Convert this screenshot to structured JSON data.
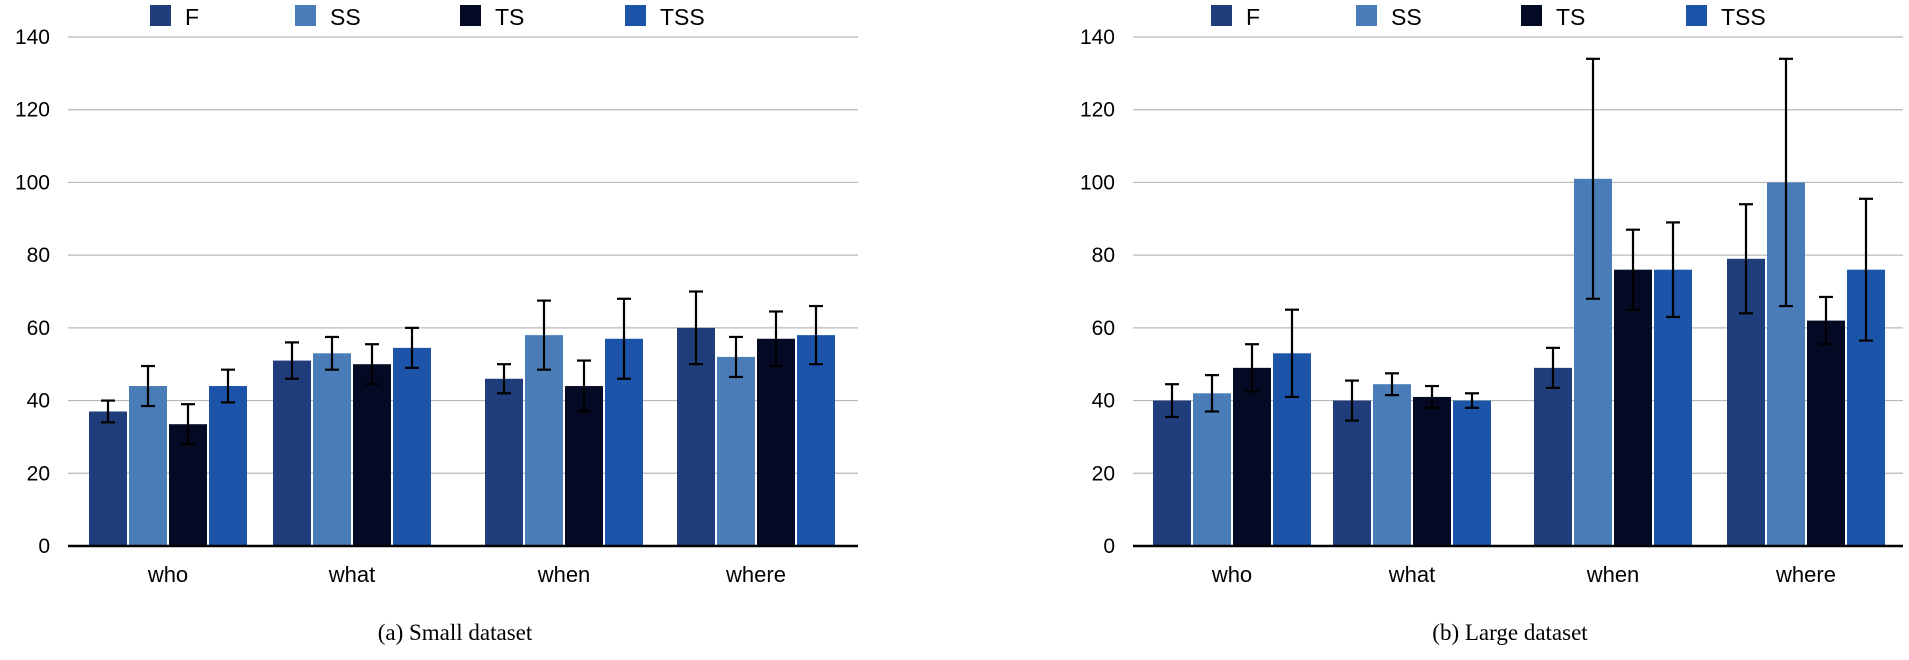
{
  "chart_data": [
    {
      "type": "bar",
      "caption": "(a) Small dataset",
      "categories": [
        "who",
        "what",
        "when",
        "where"
      ],
      "ylim": [
        0,
        140
      ],
      "yticks": [
        0,
        20,
        40,
        60,
        80,
        100,
        120,
        140
      ],
      "grid": true,
      "legend_position": "top",
      "series": [
        {
          "name": "F",
          "color": "#1f3d7a",
          "values": [
            37,
            51,
            46,
            60
          ],
          "errors": [
            3,
            5,
            4,
            10
          ]
        },
        {
          "name": "SS",
          "color": "#4a7db8",
          "values": [
            44,
            53,
            58,
            52
          ],
          "errors": [
            5.5,
            4.5,
            9.5,
            5.5
          ]
        },
        {
          "name": "TS",
          "color": "#050a24",
          "values": [
            33.5,
            50,
            44,
            57
          ],
          "errors": [
            5.5,
            5.5,
            7,
            7.5
          ]
        },
        {
          "name": "TSS",
          "color": "#1b54a8",
          "values": [
            44,
            54.5,
            57,
            58
          ],
          "errors": [
            4.5,
            5.5,
            11,
            8
          ]
        }
      ]
    },
    {
      "type": "bar",
      "caption": "(b) Large dataset",
      "categories": [
        "who",
        "what",
        "when",
        "where"
      ],
      "ylim": [
        0,
        140
      ],
      "yticks": [
        0,
        20,
        40,
        60,
        80,
        100,
        120,
        140
      ],
      "grid": true,
      "legend_position": "top",
      "series": [
        {
          "name": "F",
          "color": "#1f3d7a",
          "values": [
            40,
            40,
            49,
            79
          ],
          "errors": [
            4.5,
            5.5,
            5.5,
            15
          ]
        },
        {
          "name": "SS",
          "color": "#4a7db8",
          "values": [
            42,
            44.5,
            101,
            100
          ],
          "errors": [
            5,
            3,
            33,
            34
          ]
        },
        {
          "name": "TS",
          "color": "#050a24",
          "values": [
            49,
            41,
            76,
            62
          ],
          "errors": [
            6.5,
            3,
            11,
            6.5
          ]
        },
        {
          "name": "TSS",
          "color": "#1b54a8",
          "values": [
            53,
            40,
            76,
            76
          ],
          "errors": [
            12,
            2,
            13,
            19.5
          ]
        }
      ]
    }
  ]
}
